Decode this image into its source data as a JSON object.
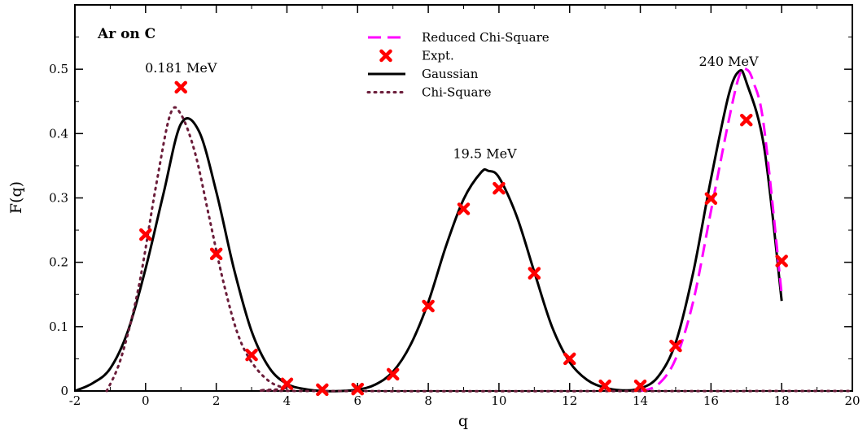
{
  "chart_data": {
    "type": "line",
    "title": "Ar on C",
    "xlabel": "q",
    "ylabel": "F(q)",
    "xlim": [
      -2,
      20
    ],
    "ylim": [
      0,
      0.6
    ],
    "xticks": [
      -2,
      0,
      2,
      4,
      6,
      8,
      10,
      12,
      14,
      16,
      18,
      20
    ],
    "yticks": [
      0,
      0.1,
      0.2,
      0.3,
      0.4,
      0.5
    ],
    "grid": false,
    "legend_position": "top-center",
    "legend": [
      {
        "name": "Reduced Chi-Square",
        "style": "dashed",
        "color": "#ff00ff"
      },
      {
        "name": "Expt.",
        "style": "marker-x",
        "color": "#ff0000"
      },
      {
        "name": "Gaussian",
        "style": "solid",
        "color": "#000000"
      },
      {
        "name": "Chi-Square",
        "style": "dotted",
        "color": "#6b1d3a"
      }
    ],
    "annotations": [
      {
        "text": "0.181 MeV",
        "x": 1.0,
        "y": 0.495
      },
      {
        "text": "19.5 MeV",
        "x": 9.6,
        "y": 0.362
      },
      {
        "text": "240 MeV",
        "x": 16.5,
        "y": 0.505
      }
    ],
    "series": [
      {
        "name": "Expt.",
        "kind": "scatter",
        "color": "#ff0000",
        "points": [
          [
            0,
            0.243
          ],
          [
            1,
            0.472
          ],
          [
            2,
            0.213
          ],
          [
            3,
            0.056
          ],
          [
            4,
            0.011
          ],
          [
            5,
            0.002
          ],
          [
            6,
            0.003
          ],
          [
            7,
            0.026
          ],
          [
            8,
            0.132
          ],
          [
            9,
            0.283
          ],
          [
            10,
            0.315
          ],
          [
            11,
            0.183
          ],
          [
            12,
            0.05
          ],
          [
            13,
            0.008
          ],
          [
            14,
            0.008
          ],
          [
            15,
            0.07
          ],
          [
            16,
            0.299
          ],
          [
            17,
            0.421
          ],
          [
            18,
            0.202
          ]
        ]
      },
      {
        "name": "Gaussian",
        "kind": "line",
        "style": "solid",
        "color": "#000000",
        "points": [
          [
            -2,
            0.0
          ],
          [
            -1.5,
            0.012
          ],
          [
            -1,
            0.035
          ],
          [
            -0.5,
            0.093
          ],
          [
            0,
            0.19
          ],
          [
            0.5,
            0.305
          ],
          [
            1,
            0.415
          ],
          [
            1.5,
            0.405
          ],
          [
            2,
            0.31
          ],
          [
            2.5,
            0.19
          ],
          [
            3,
            0.093
          ],
          [
            3.5,
            0.036
          ],
          [
            4,
            0.011
          ],
          [
            4.5,
            0.003
          ],
          [
            5,
            0.0
          ],
          [
            5.5,
            0.0
          ],
          [
            6,
            0.002
          ],
          [
            6.5,
            0.01
          ],
          [
            7,
            0.03
          ],
          [
            7.5,
            0.072
          ],
          [
            8,
            0.138
          ],
          [
            8.5,
            0.225
          ],
          [
            9,
            0.298
          ],
          [
            9.5,
            0.34
          ],
          [
            9.7,
            0.342
          ],
          [
            10,
            0.332
          ],
          [
            10.5,
            0.272
          ],
          [
            11,
            0.185
          ],
          [
            11.5,
            0.1
          ],
          [
            12,
            0.045
          ],
          [
            12.5,
            0.017
          ],
          [
            13,
            0.005
          ],
          [
            13.5,
            0.001
          ],
          [
            14,
            0.004
          ],
          [
            14.5,
            0.022
          ],
          [
            15,
            0.075
          ],
          [
            15.5,
            0.185
          ],
          [
            16,
            0.33
          ],
          [
            16.5,
            0.46
          ],
          [
            16.8,
            0.497
          ],
          [
            17,
            0.48
          ],
          [
            17.5,
            0.38
          ],
          [
            18,
            0.14
          ]
        ]
      },
      {
        "name": "Reduced Chi-Square",
        "kind": "line",
        "style": "dashed",
        "color": "#ff00ff",
        "points": [
          [
            14,
            0.0
          ],
          [
            14.5,
            0.01
          ],
          [
            15,
            0.05
          ],
          [
            15.5,
            0.14
          ],
          [
            16,
            0.28
          ],
          [
            16.5,
            0.42
          ],
          [
            16.8,
            0.49
          ],
          [
            17,
            0.5
          ],
          [
            17.2,
            0.48
          ],
          [
            17.5,
            0.41
          ],
          [
            18,
            0.15
          ]
        ]
      },
      {
        "name": "Chi-Square",
        "kind": "line",
        "style": "dotted",
        "color": "#6b1d3a",
        "points": [
          [
            -1.1,
            0.0
          ],
          [
            -0.7,
            0.05
          ],
          [
            -0.2,
            0.16
          ],
          [
            0.3,
            0.32
          ],
          [
            0.7,
            0.43
          ],
          [
            1.0,
            0.43
          ],
          [
            1.4,
            0.37
          ],
          [
            1.8,
            0.27
          ],
          [
            2.2,
            0.17
          ],
          [
            2.6,
            0.09
          ],
          [
            3,
            0.045
          ],
          [
            3.5,
            0.015
          ],
          [
            4,
            0.004
          ],
          [
            4.5,
            0.0
          ],
          [
            20,
            0.0
          ]
        ]
      }
    ]
  }
}
